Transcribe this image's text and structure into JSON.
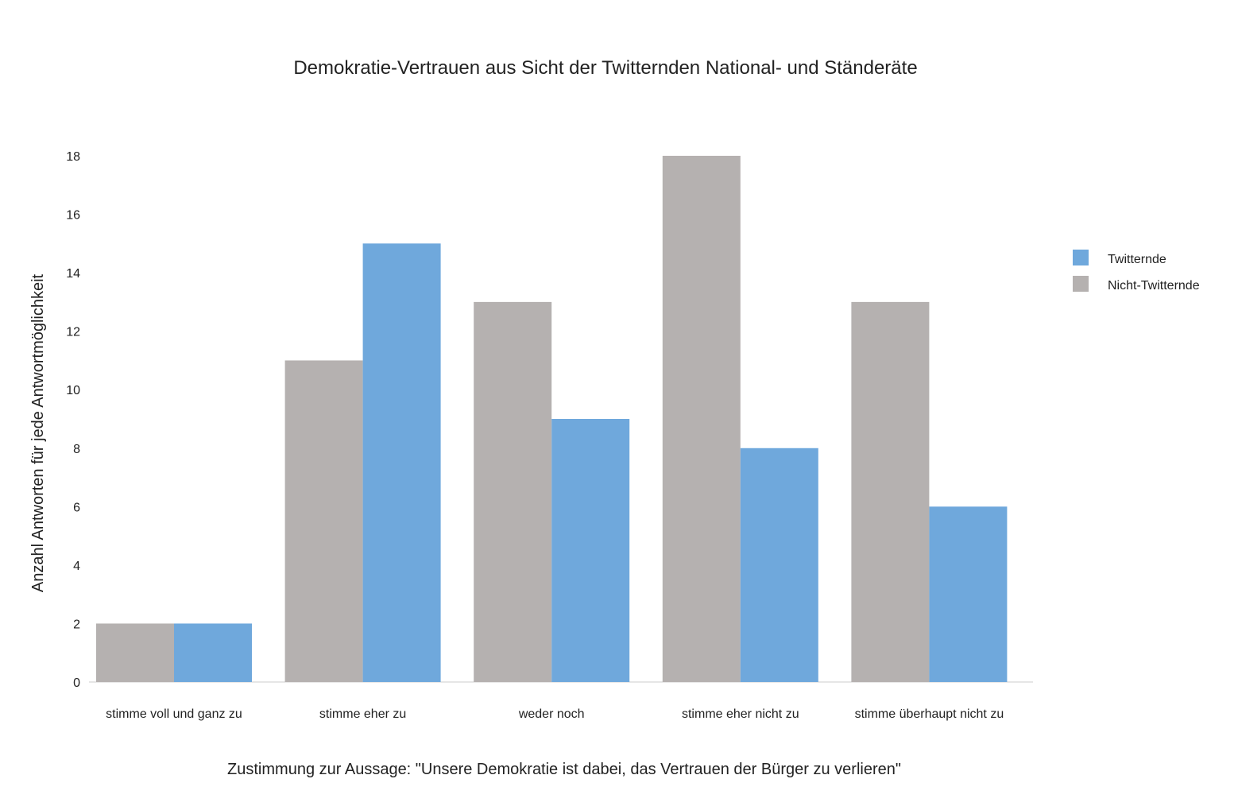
{
  "chart_data": {
    "type": "bar",
    "title": "Demokratie-Vertrauen aus Sicht der Twitternden National- und Ständeräte",
    "xlabel": "Zustimmung zur Aussage: \"Unsere Demokratie ist dabei, das Vertrauen der Bürger zu verlieren\"",
    "ylabel": "Anzahl Antworten für jede Antwortmöglichkeit",
    "categories": [
      "stimme voll und ganz zu",
      "stimme eher zu",
      "weder noch",
      "stimme eher nicht zu",
      "stimme überhaupt nicht zu"
    ],
    "series": [
      {
        "name": "Nicht-Twitternde",
        "values": [
          2,
          11,
          13,
          18,
          13
        ],
        "color": "#b5b1b0"
      },
      {
        "name": "Twitternde",
        "values": [
          2,
          15,
          9,
          8,
          6
        ],
        "color": "#6fa8dc"
      }
    ],
    "ylim": [
      0,
      18
    ],
    "yticks": [
      0,
      2,
      4,
      6,
      8,
      10,
      12,
      14,
      16,
      18
    ],
    "legend": {
      "placement": "right",
      "entries": [
        {
          "label": "Twitternde",
          "color": "#6fa8dc"
        },
        {
          "label": "Nicht-Twitternde",
          "color": "#b5b1b0"
        }
      ]
    },
    "grid": false
  }
}
